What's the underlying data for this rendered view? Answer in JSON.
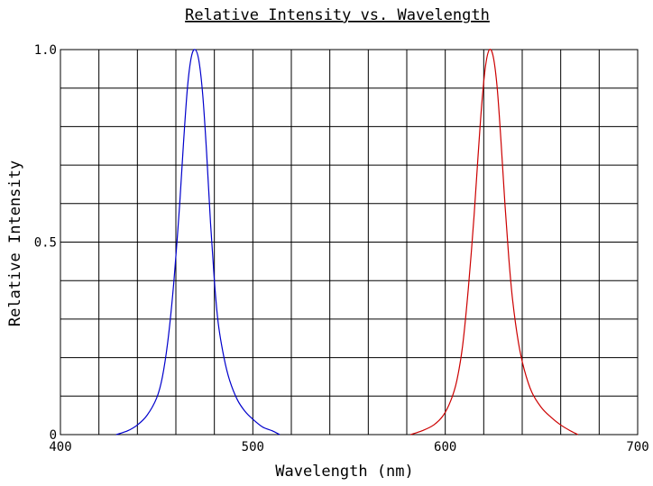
{
  "chart_data": {
    "type": "line",
    "title": "Relative Intensity vs. Wavelength",
    "xlabel": "Wavelength (nm)",
    "ylabel": "Relative Intensity",
    "xlim": [
      400,
      700
    ],
    "ylim": [
      0,
      1.0
    ],
    "x_ticks": [
      400,
      500,
      600,
      700
    ],
    "x_tick_labels": [
      "400",
      "500",
      "600",
      "700"
    ],
    "y_ticks": [
      0,
      0.5,
      1.0
    ],
    "y_tick_labels": [
      "0",
      "0.5",
      "1.0"
    ],
    "grid": true,
    "x_grid_step": 20,
    "y_grid_step": 0.1,
    "series": [
      {
        "color": "#0000cc",
        "x": [
          429,
          435,
          440,
          445,
          450,
          453,
          456,
          459,
          462,
          464,
          466,
          468,
          470,
          472,
          474,
          476,
          478,
          480,
          482,
          485,
          488,
          492,
          496,
          500,
          505,
          510,
          514
        ],
        "y": [
          0.0,
          0.01,
          0.025,
          0.05,
          0.095,
          0.15,
          0.25,
          0.4,
          0.6,
          0.76,
          0.9,
          0.98,
          1.0,
          0.97,
          0.88,
          0.73,
          0.55,
          0.4,
          0.29,
          0.2,
          0.14,
          0.09,
          0.06,
          0.04,
          0.02,
          0.01,
          0.0
        ]
      },
      {
        "color": "#cc0000",
        "x": [
          582,
          588,
          594,
          599,
          603,
          606,
          609,
          612,
          615,
          617,
          619,
          621,
          623,
          625,
          627,
          629,
          631,
          633,
          635,
          638,
          641,
          645,
          650,
          655,
          660,
          665,
          669
        ],
        "y": [
          0.0,
          0.01,
          0.025,
          0.05,
          0.09,
          0.14,
          0.23,
          0.38,
          0.57,
          0.72,
          0.86,
          0.96,
          1.0,
          0.98,
          0.9,
          0.76,
          0.6,
          0.46,
          0.35,
          0.24,
          0.17,
          0.11,
          0.07,
          0.045,
          0.025,
          0.01,
          0.0
        ]
      }
    ]
  }
}
